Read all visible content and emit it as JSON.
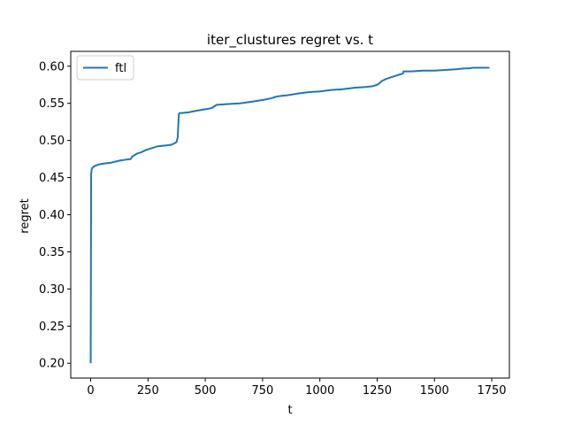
{
  "chart_data": {
    "type": "line",
    "title": "iter_clustures regret vs. t",
    "xlabel": "t",
    "ylabel": "regret",
    "xlim": [
      -87,
      1827
    ],
    "ylim": [
      0.18,
      0.62
    ],
    "xticks": [
      0,
      250,
      500,
      750,
      1000,
      1250,
      1500,
      1750
    ],
    "yticks": [
      0.2,
      0.25,
      0.3,
      0.35,
      0.4,
      0.45,
      0.5,
      0.55,
      0.6
    ],
    "xtick_labels": [
      "0",
      "250",
      "500",
      "750",
      "1000",
      "1250",
      "1500",
      "1750"
    ],
    "ytick_labels": [
      "0.20",
      "0.25",
      "0.30",
      "0.35",
      "0.40",
      "0.45",
      "0.50",
      "0.55",
      "0.60"
    ],
    "grid": false,
    "legend_position": "top-left",
    "series": [
      {
        "name": "ftl",
        "color": "#1f77b4",
        "x": [
          0,
          2,
          5,
          10,
          20,
          40,
          60,
          90,
          100,
          130,
          150,
          175,
          180,
          190,
          200,
          220,
          240,
          250,
          270,
          290,
          320,
          350,
          365,
          375,
          380,
          382,
          385,
          390,
          400,
          430,
          460,
          500,
          520,
          530,
          550,
          600,
          650,
          700,
          760,
          790,
          800,
          810,
          830,
          860,
          900,
          950,
          1000,
          1050,
          1100,
          1150,
          1200,
          1230,
          1250,
          1260,
          1270,
          1290,
          1310,
          1330,
          1350,
          1362,
          1365,
          1380,
          1400,
          1450,
          1500,
          1550,
          1600,
          1630,
          1650,
          1670,
          1700,
          1740
        ],
        "y": [
          0.2,
          0.455,
          0.462,
          0.464,
          0.466,
          0.468,
          0.469,
          0.47,
          0.471,
          0.473,
          0.474,
          0.475,
          0.478,
          0.48,
          0.482,
          0.484,
          0.487,
          0.488,
          0.49,
          0.492,
          0.493,
          0.494,
          0.496,
          0.498,
          0.505,
          0.52,
          0.536,
          0.537,
          0.537,
          0.538,
          0.54,
          0.542,
          0.543,
          0.544,
          0.548,
          0.549,
          0.55,
          0.552,
          0.555,
          0.557,
          0.558,
          0.559,
          0.56,
          0.561,
          0.563,
          0.565,
          0.566,
          0.568,
          0.569,
          0.571,
          0.572,
          0.573,
          0.575,
          0.577,
          0.58,
          0.583,
          0.585,
          0.587,
          0.589,
          0.59,
          0.593,
          0.593,
          0.593,
          0.594,
          0.594,
          0.595,
          0.596,
          0.597,
          0.597,
          0.598,
          0.598,
          0.598
        ]
      }
    ]
  }
}
